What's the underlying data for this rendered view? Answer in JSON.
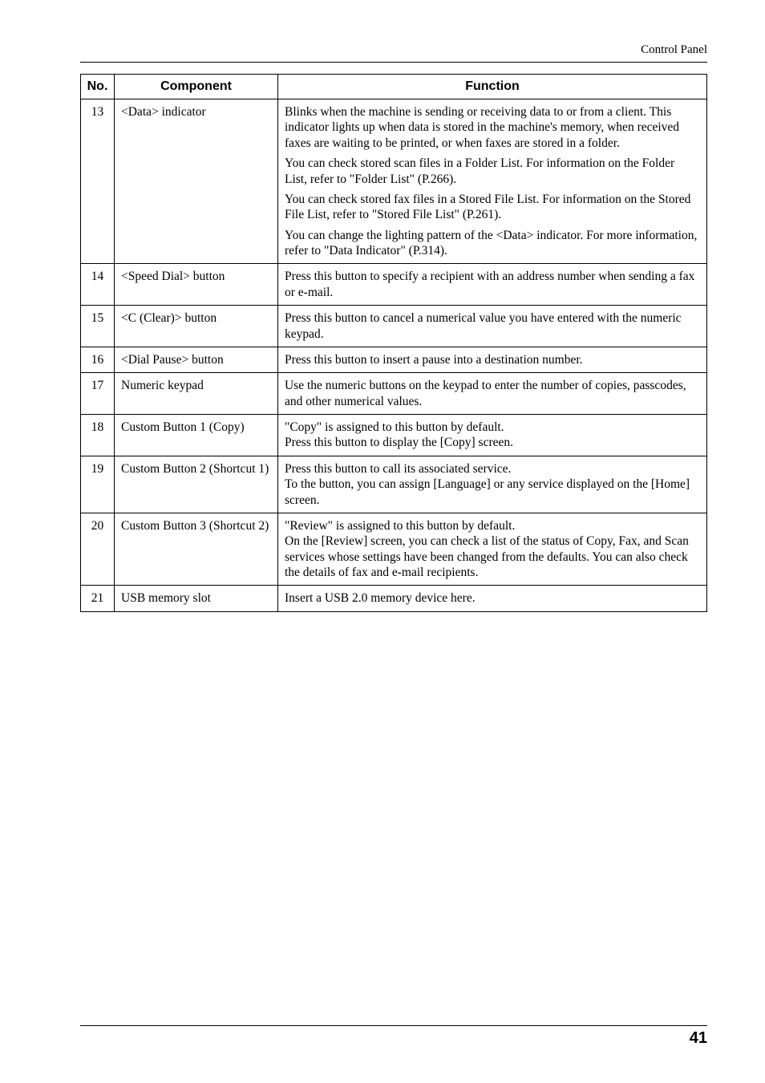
{
  "header": {
    "section_title": "Control Panel"
  },
  "footer": {
    "page_number": "41"
  },
  "table": {
    "headers": {
      "no": "No.",
      "component": "Component",
      "function": "Function"
    },
    "rows": [
      {
        "no": "13",
        "component": "<Data> indicator",
        "function_paras": [
          "Blinks when the machine is sending or receiving data to or from a client. This indicator lights up when data is stored in the machine's memory, when received faxes are waiting to be printed, or when faxes are stored in a folder.",
          "You can check stored scan files in a Folder List. For information on the Folder List, refer to \"Folder List\" (P.266).",
          "You can check stored fax files in a Stored File List. For information on the Stored File List, refer to \"Stored File List\" (P.261).",
          "You can change the lighting pattern of the <Data> indicator. For more information, refer to \"Data Indicator\" (P.314)."
        ]
      },
      {
        "no": "14",
        "component": "<Speed Dial> button",
        "function_paras": [
          "Press this button to specify a recipient with an address number when sending a fax or e-mail."
        ]
      },
      {
        "no": "15",
        "component": "<C (Clear)> button",
        "function_paras": [
          "Press this button to cancel a numerical value you have entered with the numeric keypad."
        ]
      },
      {
        "no": "16",
        "component": "<Dial Pause> button",
        "function_paras": [
          "Press this button to insert a pause into a destination number."
        ]
      },
      {
        "no": "17",
        "component": "Numeric keypad",
        "function_paras": [
          "Use the numeric buttons on the keypad to enter the number of copies, passcodes, and other numerical values."
        ]
      },
      {
        "no": "18",
        "component": "Custom Button 1 (Copy)",
        "function_paras": [
          "\"Copy\" is assigned to this button by default.\nPress this button to display the [Copy] screen."
        ]
      },
      {
        "no": "19",
        "component": "Custom Button 2 (Shortcut 1)",
        "function_paras": [
          "Press this button to call its associated service.\nTo the button, you can assign [Language] or any service displayed on the [Home] screen."
        ]
      },
      {
        "no": "20",
        "component": "Custom Button 3 (Shortcut 2)",
        "function_paras": [
          "\"Review\" is assigned to this button by default.\nOn the [Review] screen, you can check a list of the status of Copy, Fax, and Scan services whose settings have been changed from the defaults. You can also check the details of fax and e-mail recipients."
        ]
      },
      {
        "no": "21",
        "component": "USB memory slot",
        "function_paras": [
          "Insert a USB 2.0 memory device here."
        ]
      }
    ]
  }
}
